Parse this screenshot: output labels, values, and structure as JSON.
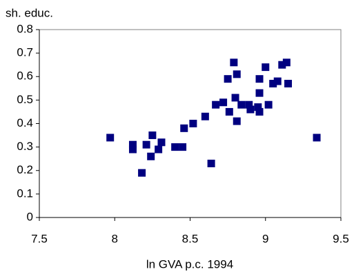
{
  "chart_data": {
    "type": "scatter",
    "y_label": "sh. educ.",
    "x_label": "ln GVA p.c. 1994",
    "color": "#000080",
    "xlim": [
      7.5,
      9.5
    ],
    "xticks": [
      7.5,
      8,
      8.5,
      9,
      9.5
    ],
    "ylim": [
      0,
      0.8
    ],
    "yticks": [
      0,
      0.1,
      0.2,
      0.3,
      0.4,
      0.5,
      0.6,
      0.7,
      0.8
    ],
    "x": [
      7.97,
      8.12,
      8.12,
      8.18,
      8.21,
      8.25,
      8.24,
      8.29,
      8.31,
      8.4,
      8.45,
      8.46,
      8.52,
      8.6,
      8.64,
      8.67,
      8.72,
      8.75,
      8.76,
      8.79,
      8.81,
      8.8,
      8.81,
      8.84,
      8.89,
      8.9,
      8.95,
      8.96,
      8.96,
      8.96,
      9.0,
      9.02,
      9.05,
      9.08,
      9.11,
      9.14,
      9.15,
      9.34
    ],
    "values": [
      0.34,
      0.31,
      0.29,
      0.19,
      0.31,
      0.35,
      0.26,
      0.29,
      0.32,
      0.3,
      0.3,
      0.38,
      0.4,
      0.43,
      0.23,
      0.48,
      0.49,
      0.59,
      0.45,
      0.66,
      0.61,
      0.51,
      0.41,
      0.48,
      0.48,
      0.46,
      0.47,
      0.45,
      0.53,
      0.59,
      0.64,
      0.48,
      0.57,
      0.58,
      0.65,
      0.66,
      0.57,
      0.34
    ]
  }
}
